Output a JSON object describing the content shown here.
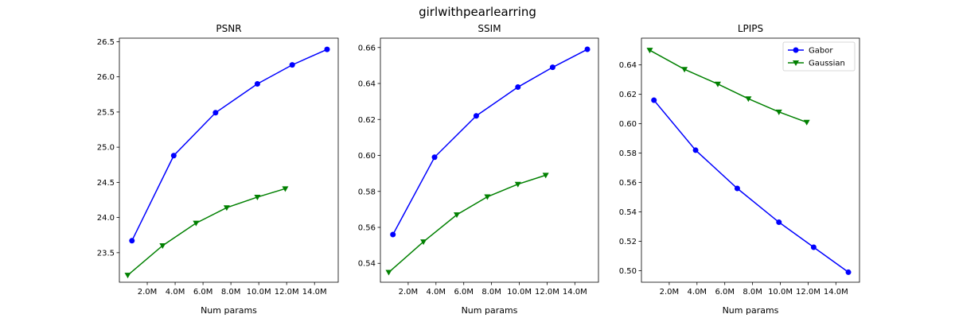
{
  "figure": {
    "title": "girlwithpearlearring"
  },
  "colors": {
    "Gabor": "#0000ff",
    "Gaussian": "#008000"
  },
  "chart_data": [
    {
      "type": "line",
      "title": "PSNR",
      "xlabel": "Num params",
      "ylabel": "",
      "xlim": [
        0.0,
        15.7
      ],
      "ylim": [
        23.08,
        26.55
      ],
      "xticks": [
        2,
        4,
        6,
        8,
        10,
        12,
        14
      ],
      "xtick_labels": [
        "2.0M",
        "4.0M",
        "6.0M",
        "8.0M",
        "10.0M",
        "12.0M",
        "14.0M"
      ],
      "yticks": [
        23.5,
        24.0,
        24.5,
        25.0,
        25.5,
        26.0,
        26.5
      ],
      "ytick_labels": [
        "23.5",
        "24.0",
        "24.5",
        "25.0",
        "25.5",
        "26.0",
        "26.5"
      ],
      "grid": false,
      "legend": null,
      "series": [
        {
          "name": "Gabor",
          "marker": "circle",
          "x": [
            0.9,
            3.9,
            6.9,
            9.9,
            12.4,
            14.9
          ],
          "y": [
            23.67,
            24.88,
            25.49,
            25.9,
            26.17,
            26.39
          ]
        },
        {
          "name": "Gaussian",
          "marker": "triangle-down",
          "x": [
            0.6,
            3.1,
            5.5,
            7.7,
            9.9,
            11.9
          ],
          "y": [
            23.18,
            23.6,
            23.92,
            24.14,
            24.29,
            24.41
          ]
        }
      ]
    },
    {
      "type": "line",
      "title": "SSIM",
      "xlabel": "Num params",
      "ylabel": "",
      "xlim": [
        0.0,
        15.7
      ],
      "ylim": [
        0.5295,
        0.6652
      ],
      "xticks": [
        2,
        4,
        6,
        8,
        10,
        12,
        14
      ],
      "xtick_labels": [
        "2.0M",
        "4.0M",
        "6.0M",
        "8.0M",
        "10.0M",
        "12.0M",
        "14.0M"
      ],
      "yticks": [
        0.54,
        0.56,
        0.58,
        0.6,
        0.62,
        0.64,
        0.66
      ],
      "ytick_labels": [
        "0.54",
        "0.56",
        "0.58",
        "0.60",
        "0.62",
        "0.64",
        "0.66"
      ],
      "grid": false,
      "legend": null,
      "series": [
        {
          "name": "Gabor",
          "marker": "circle",
          "x": [
            0.9,
            3.9,
            6.9,
            9.9,
            12.4,
            14.9
          ],
          "y": [
            0.556,
            0.599,
            0.622,
            0.638,
            0.649,
            0.659
          ]
        },
        {
          "name": "Gaussian",
          "marker": "triangle-down",
          "x": [
            0.6,
            3.1,
            5.5,
            7.7,
            9.9,
            11.9
          ],
          "y": [
            0.535,
            0.552,
            0.567,
            0.577,
            0.584,
            0.589
          ]
        }
      ]
    },
    {
      "type": "line",
      "title": "LPIPS",
      "xlabel": "Num params",
      "ylabel": "",
      "xlim": [
        0.0,
        15.7
      ],
      "ylim": [
        0.4922,
        0.6582
      ],
      "xticks": [
        2,
        4,
        6,
        8,
        10,
        12,
        14
      ],
      "xtick_labels": [
        "2.0M",
        "4.0M",
        "6.0M",
        "8.0M",
        "10.0M",
        "12.0M",
        "14.0M"
      ],
      "yticks": [
        0.5,
        0.52,
        0.54,
        0.56,
        0.58,
        0.6,
        0.62,
        0.64
      ],
      "ytick_labels": [
        "0.50",
        "0.52",
        "0.54",
        "0.56",
        "0.58",
        "0.60",
        "0.62",
        "0.64"
      ],
      "grid": false,
      "legend": "top-right",
      "series": [
        {
          "name": "Gabor",
          "marker": "circle",
          "x": [
            0.9,
            3.9,
            6.9,
            9.9,
            12.4,
            14.9
          ],
          "y": [
            0.616,
            0.582,
            0.556,
            0.533,
            0.516,
            0.499
          ]
        },
        {
          "name": "Gaussian",
          "marker": "triangle-down",
          "x": [
            0.6,
            3.1,
            5.5,
            7.7,
            9.9,
            11.9
          ],
          "y": [
            0.65,
            0.637,
            0.627,
            0.617,
            0.608,
            0.601
          ]
        }
      ]
    }
  ]
}
